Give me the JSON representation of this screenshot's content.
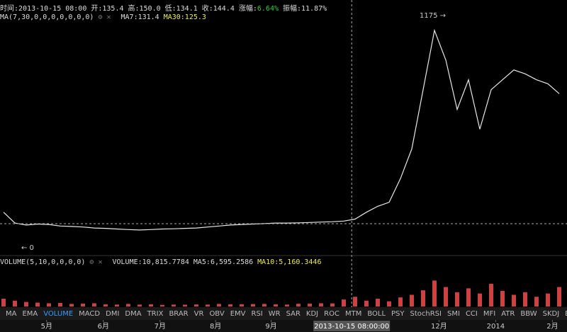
{
  "header": {
    "items": [
      "时间:2013-10-15 08:00",
      "开:135.4",
      "高:150.0",
      "低:134.1",
      "收:144.4",
      "涨幅:",
      "6.64%",
      "振幅:11.87%"
    ]
  },
  "ma_bar": {
    "params": "MA(7,30,0,0,0,0,0,0,0)",
    "ma7": "MA7:131.4",
    "ma30": "MA30:125.3"
  },
  "volume_bar": {
    "params": "VOLUME(5,10,0,0,0,0)",
    "volume": "VOLUME:10,815.7784",
    "ma5": "MA5:6,595.2586",
    "ma10": "MA10:5,160.3446"
  },
  "tabs": [
    "MA",
    "EMA",
    "VOLUME",
    "MACD",
    "DMI",
    "DMA",
    "TRIX",
    "BRAR",
    "VR",
    "OBV",
    "EMV",
    "RSI",
    "WR",
    "SAR",
    "KDJ",
    "ROC",
    "MTM",
    "BOLL",
    "PSY",
    "StochRSI",
    "SMI",
    "CCI",
    "MFI",
    "ATR",
    "BBW",
    "SKDJ",
    "BIAS"
  ],
  "chart_data": [
    {
      "type": "line",
      "series": [
        {
          "name": "close",
          "color": "#e8e8e8",
          "values": [
            180,
            125,
            115,
            120,
            118,
            110,
            108,
            105,
            100,
            98,
            95,
            92,
            90,
            92,
            95,
            96,
            98,
            100,
            105,
            110,
            115,
            118,
            120,
            122,
            125,
            125,
            126,
            128,
            130,
            132,
            135,
            145,
            180,
            210,
            230,
            350,
            500,
            800,
            1100,
            950,
            700,
            850,
            600,
            800,
            850,
            900,
            880,
            850,
            830,
            780
          ]
        }
      ],
      "xlim": [
        0,
        49
      ],
      "ylim": [
        0,
        1175
      ],
      "xticks": [
        {
          "value": 3.8,
          "label": "5月"
        },
        {
          "value": 8.8,
          "label": "6月"
        },
        {
          "value": 13.8,
          "label": "7月"
        },
        {
          "value": 18.7,
          "label": "8月"
        },
        {
          "value": 23.6,
          "label": "9月"
        },
        {
          "value": 38.4,
          "label": "12月"
        },
        {
          "value": 43.4,
          "label": "2014"
        },
        {
          "value": 48.4,
          "label": "2月"
        }
      ],
      "crosshair": {
        "value": 30.7,
        "label": "2013-10-15 08:00:00"
      },
      "crosshair_y": 122,
      "annotations": [
        {
          "value": 1175,
          "label": "1175 →"
        },
        {
          "value": 0,
          "label": "← 0"
        }
      ]
    },
    {
      "type": "bar",
      "color": "#d04040",
      "ylim": [
        0,
        60000
      ],
      "values": [
        12000,
        9000,
        7000,
        6000,
        5000,
        5500,
        4000,
        4500,
        5000,
        3500,
        3000,
        4000,
        3000,
        3500,
        2500,
        3000,
        2800,
        3200,
        3000,
        4000,
        3500,
        3600,
        3800,
        4000,
        3500,
        3000,
        4200,
        4500,
        5000,
        4800,
        10800,
        15000,
        9000,
        12000,
        8000,
        14000,
        18000,
        25000,
        40000,
        30000,
        22000,
        28000,
        20000,
        35000,
        24000,
        18000,
        22000,
        15000,
        20000,
        30000
      ]
    }
  ]
}
